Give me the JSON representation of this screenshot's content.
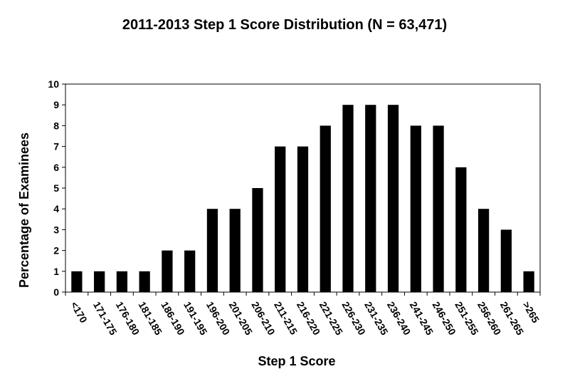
{
  "chart_data": {
    "type": "bar",
    "title": "2011-2013 Step 1 Score Distribution (N = 63,471)",
    "xlabel": "Step 1 Score",
    "ylabel": "Percentage of Examinees",
    "ylim": [
      0,
      10
    ],
    "yticks": [
      "0",
      "1",
      "2",
      "3",
      "4",
      "5",
      "6",
      "7",
      "8",
      "9",
      "10"
    ],
    "categories": [
      "<170",
      "171-175",
      "176-180",
      "181-185",
      "186-190",
      "191-195",
      "196-200",
      "201-205",
      "206-210",
      "211-215",
      "216-220",
      "221-225",
      "226-230",
      "231-235",
      "236-240",
      "241-245",
      "246-250",
      "251-255",
      "256-260",
      "261-265",
      ">265"
    ],
    "values": [
      1,
      1,
      1,
      1,
      2,
      2,
      4,
      4,
      5,
      7,
      7,
      8,
      9,
      9,
      9,
      8,
      8,
      6,
      4,
      3,
      1
    ],
    "bar_color": "#000000",
    "grid": false,
    "legend": "none"
  }
}
